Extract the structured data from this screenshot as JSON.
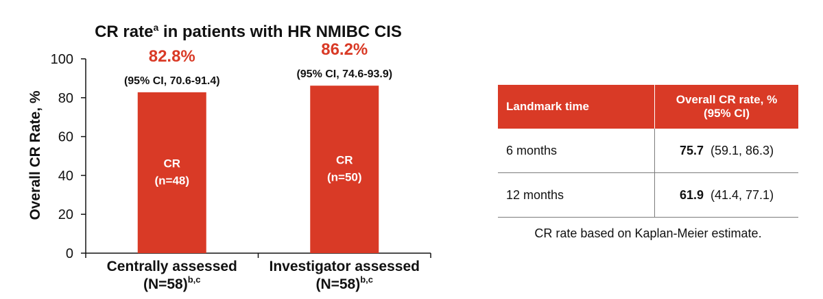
{
  "chart_data": {
    "type": "bar",
    "title": "CR rate",
    "title_superscript": "a",
    "title_rest": " in patients with HR NMIBC CIS",
    "ylabel": "Overall CR Rate, %",
    "ylim": [
      0,
      100
    ],
    "yticks": [
      0,
      20,
      40,
      60,
      80,
      100
    ],
    "grid": false,
    "bar_color": "#d93a26",
    "label_color": "#d93a26",
    "categories": [
      {
        "line1": "Centrally assessed",
        "line2": "(N=58)",
        "sup": "b,c"
      },
      {
        "line1": "Investigator assessed",
        "line2": "(N=58)",
        "sup": "b,c"
      }
    ],
    "values": [
      82.8,
      86.2
    ],
    "value_labels": [
      "82.8%",
      "86.2%"
    ],
    "ci_labels": [
      "(95% CI, 70.6-91.4)",
      "(95% CI, 74.6-93.9)"
    ],
    "inner_labels": [
      {
        "line1": "CR",
        "line2": "(n=48)"
      },
      {
        "line1": "CR",
        "line2": "(n=50)"
      }
    ]
  },
  "table": {
    "header_color": "#d93a26",
    "headers": {
      "time": "Landmark time",
      "rate_line1": "Overall CR rate, %",
      "rate_line2": "(95% CI)"
    },
    "rows": [
      {
        "time": "6 months",
        "rate": "75.7",
        "ci": "(59.1, 86.3)"
      },
      {
        "time": "12 months",
        "rate": "61.9",
        "ci": "(41.4, 77.1)"
      }
    ],
    "footnote": "CR rate based on Kaplan-Meier estimate."
  }
}
